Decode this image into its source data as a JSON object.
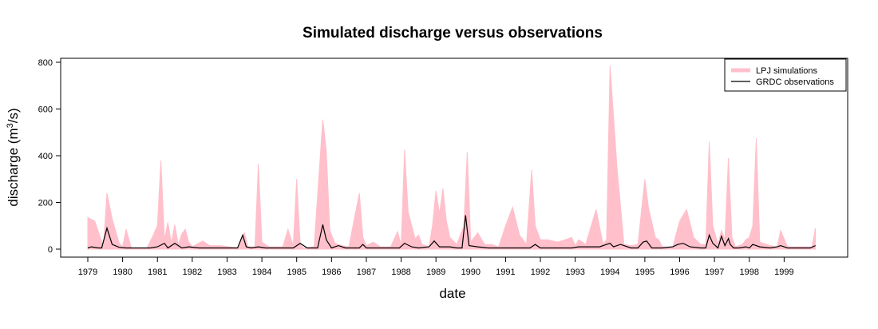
{
  "chart_data": {
    "type": "area",
    "title": "Simulated discharge versus observations",
    "xlabel": "date",
    "ylabel_main": "discharge (m",
    "ylabel_sup": "3",
    "ylabel_end": "/s)",
    "xlim": [
      1979,
      2000
    ],
    "ylim": [
      0,
      800
    ],
    "x_ticks": [
      1979,
      1980,
      1981,
      1982,
      1983,
      1984,
      1985,
      1986,
      1987,
      1988,
      1989,
      1990,
      1991,
      1992,
      1993,
      1994,
      1995,
      1996,
      1997,
      1998,
      1999
    ],
    "x_tick_labels": [
      "1979",
      "1980",
      "1981",
      "1982",
      "1983",
      "1984",
      "1985",
      "1986",
      "1987",
      "1988",
      "1989",
      "1990",
      "1991",
      "1992",
      "1993",
      "1994",
      "1995",
      "1996",
      "1997",
      "1998",
      "1999"
    ],
    "y_ticks": [
      0,
      200,
      400,
      600,
      800
    ],
    "y_tick_labels": [
      "0",
      "200",
      "400",
      "600",
      "800"
    ],
    "legend": {
      "position": "top-right",
      "entries": [
        "LPJ simulations",
        "GRDC observations"
      ]
    },
    "colors": {
      "simulations": "#ffc0cb",
      "observations": "#000000"
    },
    "sim_x": [
      1979.0,
      1979.2,
      1979.45,
      1979.55,
      1979.7,
      1979.9,
      1980.0,
      1980.1,
      1980.25,
      1980.7,
      1980.85,
      1981.0,
      1981.1,
      1981.2,
      1981.3,
      1981.4,
      1981.5,
      1981.55,
      1981.6,
      1981.7,
      1981.8,
      1981.9,
      1982.0,
      1982.3,
      1982.5,
      1982.8,
      1983.3,
      1983.5,
      1983.6,
      1983.8,
      1983.9,
      1984.0,
      1984.2,
      1984.6,
      1984.75,
      1984.9,
      1985.0,
      1985.1,
      1985.2,
      1985.5,
      1985.75,
      1985.85,
      1985.95,
      1986.1,
      1986.3,
      1986.5,
      1986.8,
      1986.9,
      1987.0,
      1987.2,
      1987.4,
      1987.7,
      1987.9,
      1988.0,
      1988.1,
      1988.2,
      1988.4,
      1988.5,
      1988.6,
      1988.8,
      1988.9,
      1989.0,
      1989.1,
      1989.2,
      1989.3,
      1989.4,
      1989.6,
      1989.8,
      1989.9,
      1990.0,
      1990.2,
      1990.4,
      1990.6,
      1990.8,
      1991.0,
      1991.2,
      1991.4,
      1991.6,
      1991.75,
      1991.85,
      1992.0,
      1992.2,
      1992.5,
      1992.7,
      1992.9,
      1993.0,
      1993.1,
      1993.3,
      1993.6,
      1993.8,
      1993.9,
      1994.0,
      1994.2,
      1994.4,
      1994.6,
      1994.8,
      1995.0,
      1995.1,
      1995.3,
      1995.4,
      1995.5,
      1995.7,
      1995.8,
      1996.0,
      1996.2,
      1996.4,
      1996.6,
      1996.75,
      1996.85,
      1996.95,
      1997.1,
      1997.2,
      1997.3,
      1997.4,
      1997.5,
      1997.6,
      1997.8,
      1997.9,
      1998.0,
      1998.1,
      1998.2,
      1998.3,
      1998.6,
      1998.8,
      1998.9,
      1999.1,
      1999.4,
      1999.6,
      1999.8,
      1999.9
    ],
    "sim_y": [
      135,
      120,
      10,
      240,
      130,
      25,
      10,
      85,
      5,
      5,
      50,
      100,
      380,
      40,
      115,
      25,
      105,
      60,
      20,
      65,
      85,
      30,
      10,
      35,
      15,
      15,
      5,
      70,
      10,
      10,
      365,
      30,
      10,
      10,
      85,
      15,
      300,
      20,
      5,
      10,
      555,
      420,
      80,
      25,
      15,
      10,
      240,
      50,
      15,
      30,
      10,
      10,
      75,
      15,
      425,
      160,
      45,
      60,
      20,
      10,
      100,
      250,
      150,
      260,
      120,
      50,
      20,
      100,
      415,
      30,
      70,
      20,
      20,
      10,
      100,
      180,
      60,
      20,
      340,
      100,
      40,
      40,
      30,
      40,
      50,
      15,
      40,
      20,
      170,
      20,
      40,
      785,
      350,
      20,
      15,
      20,
      300,
      180,
      50,
      40,
      10,
      10,
      10,
      120,
      170,
      50,
      20,
      20,
      460,
      100,
      20,
      80,
      40,
      390,
      50,
      10,
      20,
      40,
      50,
      100,
      475,
      30,
      15,
      10,
      80,
      10,
      10,
      10,
      10,
      90
    ],
    "obs_x": [
      1979.0,
      1979.1,
      1979.3,
      1979.4,
      1979.55,
      1979.7,
      1979.9,
      1980.1,
      1980.4,
      1980.8,
      1981.0,
      1981.2,
      1981.3,
      1981.5,
      1981.7,
      1981.9,
      1982.2,
      1982.6,
      1983.0,
      1983.3,
      1983.45,
      1983.55,
      1983.7,
      1983.9,
      1984.1,
      1984.4,
      1984.7,
      1984.9,
      1985.1,
      1985.3,
      1985.6,
      1985.75,
      1985.85,
      1986.0,
      1986.2,
      1986.4,
      1986.8,
      1986.9,
      1987.0,
      1987.3,
      1987.7,
      1987.95,
      1988.1,
      1988.3,
      1988.5,
      1988.8,
      1988.95,
      1989.1,
      1989.4,
      1989.6,
      1989.75,
      1989.85,
      1989.95,
      1990.2,
      1990.5,
      1990.8,
      1991.0,
      1991.4,
      1991.7,
      1991.85,
      1992.0,
      1992.3,
      1992.6,
      1992.9,
      1993.1,
      1993.4,
      1993.7,
      1993.9,
      1994.0,
      1994.1,
      1994.3,
      1994.6,
      1994.8,
      1994.95,
      1995.05,
      1995.2,
      1995.5,
      1995.8,
      1995.95,
      1996.1,
      1996.3,
      1996.6,
      1996.75,
      1996.85,
      1996.95,
      1997.1,
      1997.2,
      1997.3,
      1997.4,
      1997.45,
      1997.55,
      1997.7,
      1997.9,
      1998.0,
      1998.1,
      1998.3,
      1998.6,
      1998.8,
      1998.9,
      1999.1,
      1999.4,
      1999.6,
      1999.75,
      1999.9
    ],
    "obs_y": [
      5,
      10,
      5,
      5,
      90,
      20,
      8,
      5,
      5,
      5,
      10,
      25,
      5,
      25,
      5,
      10,
      5,
      5,
      5,
      5,
      60,
      10,
      5,
      10,
      5,
      5,
      5,
      5,
      25,
      5,
      5,
      105,
      40,
      5,
      15,
      5,
      5,
      20,
      5,
      5,
      5,
      5,
      25,
      10,
      5,
      10,
      35,
      10,
      10,
      5,
      5,
      145,
      15,
      10,
      5,
      5,
      5,
      5,
      5,
      20,
      5,
      5,
      5,
      5,
      10,
      10,
      10,
      20,
      25,
      10,
      20,
      5,
      5,
      30,
      35,
      5,
      5,
      10,
      20,
      25,
      10,
      5,
      5,
      60,
      25,
      5,
      55,
      15,
      45,
      20,
      5,
      5,
      10,
      5,
      20,
      10,
      5,
      10,
      15,
      5,
      5,
      5,
      5,
      15
    ]
  }
}
